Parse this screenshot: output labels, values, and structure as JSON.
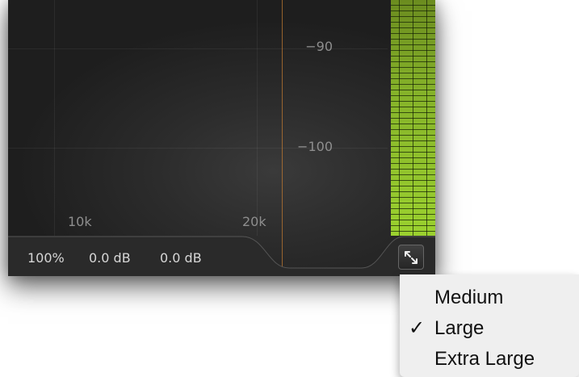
{
  "graph": {
    "db_labels": [
      "−90",
      "−100"
    ],
    "freq_labels": [
      "10k",
      "20k"
    ]
  },
  "status": {
    "mix": "100%",
    "gain1": "0.0 dB",
    "gain2": "0.0 dB"
  },
  "colors": {
    "background": "#2c2c2c",
    "meter_green": "#9bd12f",
    "marker_orange": "#be7832",
    "menu_bg": "#efefef"
  },
  "size_menu": {
    "items": [
      {
        "label": "Medium",
        "checked": false
      },
      {
        "label": "Large",
        "checked": true
      },
      {
        "label": "Extra Large",
        "checked": false
      }
    ],
    "check_glyph": "✓"
  },
  "icons": {
    "resize": "expand-arrows-icon",
    "check": "checkmark-icon"
  }
}
